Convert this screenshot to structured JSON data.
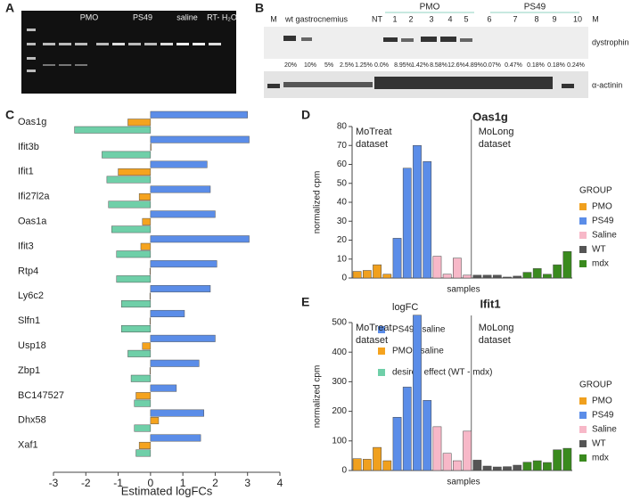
{
  "gel_a": {
    "panel": "A",
    "lanes": [
      "PMO",
      "PS49",
      "saline",
      "RT- H₂O"
    ]
  },
  "blot_b": {
    "panel": "B",
    "lanes": [
      "M",
      "wt gastrocnemius",
      "NT",
      "1",
      "2",
      "3",
      "4",
      "5",
      "6",
      "7",
      "8",
      "9",
      "10",
      "M"
    ],
    "groups": [
      "PMO",
      "PS49"
    ],
    "percentages": [
      "20%",
      "10%",
      "5%",
      "2.5%",
      "1.25%",
      "0.0%",
      "8.95%",
      "1.42%",
      "8.58%",
      "12.6%",
      "4.89%",
      "0.07%",
      "0.47%",
      "0.18%",
      "0.18%",
      "0.24%"
    ],
    "bands": [
      "dystrophin",
      "α-actinin"
    ]
  },
  "chart_data": [
    {
      "type": "hbar",
      "panel": "C",
      "xlabel": "Estimated logFCs",
      "categories": [
        "Oas1g",
        "Ifit3b",
        "Ifit1",
        "Ifi27l2a",
        "Oas1a",
        "Ifit3",
        "Rtp4",
        "Ly6c2",
        "Slfn1",
        "Usp18",
        "Zbp1",
        "BC147527",
        "Dhx58",
        "Xaf1"
      ],
      "series": [
        {
          "name": "PS49 - saline",
          "color": "#5b8de8",
          "values": [
            3.0,
            3.05,
            1.75,
            1.85,
            2.0,
            3.05,
            2.05,
            1.85,
            1.05,
            2.0,
            1.5,
            0.8,
            1.65,
            1.55
          ]
        },
        {
          "name": "PMO - saline",
          "color": "#f5a31e",
          "values": [
            -0.7,
            0.02,
            -1.0,
            -0.35,
            -0.25,
            -0.3,
            -0.02,
            -0.02,
            -0.02,
            -0.25,
            -0.02,
            -0.45,
            0.25,
            -0.35
          ]
        },
        {
          "name": "desired effect (WT - mdx)",
          "color": "#6fcfa8",
          "values": [
            -2.35,
            -1.5,
            -1.35,
            -1.3,
            -1.2,
            -1.05,
            -1.05,
            -0.9,
            -0.9,
            -0.7,
            -0.6,
            -0.5,
            -0.5,
            -0.45
          ]
        }
      ],
      "xlim": [
        -3,
        4
      ],
      "xticks": [
        -3,
        -2,
        -1,
        0,
        1,
        2,
        3,
        4
      ],
      "legend_title": "logFC"
    },
    {
      "type": "bar",
      "panel": "D",
      "title": "Oas1g",
      "xlabel": "samples",
      "ylabel": "normalized cpm",
      "categories": [
        null,
        null,
        null,
        null,
        null,
        null,
        null,
        null,
        null,
        null,
        null,
        null,
        null,
        null,
        null,
        null,
        null,
        null,
        null,
        null,
        null,
        null
      ],
      "series": [
        {
          "name": "PMO",
          "color": "#f0a01e",
          "values": [
            3.5,
            4,
            7,
            2,
            null,
            null,
            null,
            null,
            null,
            null,
            null,
            null,
            null,
            null,
            null,
            null,
            null,
            null,
            null,
            null,
            null,
            null
          ]
        },
        {
          "name": "PS49",
          "color": "#5b8de8",
          "values": [
            null,
            null,
            null,
            null,
            21,
            58,
            70,
            61.5,
            null,
            null,
            null,
            null,
            null,
            null,
            null,
            null,
            null,
            null,
            null,
            null,
            null,
            null
          ]
        },
        {
          "name": "Saline",
          "color": "#f7b8c8",
          "values": [
            null,
            null,
            null,
            null,
            null,
            null,
            null,
            null,
            11.5,
            2,
            10.5,
            1.5,
            null,
            null,
            null,
            null,
            null,
            null,
            null,
            null,
            null,
            null
          ]
        },
        {
          "name": "WT",
          "color": "#555555",
          "values": [
            null,
            null,
            null,
            null,
            null,
            null,
            null,
            null,
            null,
            null,
            null,
            null,
            1.5,
            1.5,
            1.5,
            0.5,
            1,
            null,
            null,
            null,
            null,
            null
          ]
        },
        {
          "name": "mdx",
          "color": "#3a8a1e",
          "values": [
            null,
            null,
            null,
            null,
            null,
            null,
            null,
            null,
            null,
            null,
            null,
            null,
            null,
            null,
            null,
            null,
            null,
            3,
            5,
            2,
            7,
            14
          ]
        }
      ],
      "ylim": [
        0,
        80
      ],
      "yticks": [
        0,
        10,
        20,
        30,
        40,
        50,
        60,
        70,
        80
      ],
      "annotations": [
        [
          "MoTreat",
          "dataset"
        ],
        [
          "MoLong",
          "dataset"
        ]
      ],
      "legend_title": "GROUP"
    },
    {
      "type": "bar",
      "panel": "E",
      "title": "Ifit1",
      "xlabel": "samples",
      "ylabel": "normalized cpm",
      "categories": [
        null,
        null,
        null,
        null,
        null,
        null,
        null,
        null,
        null,
        null,
        null,
        null,
        null,
        null,
        null,
        null,
        null,
        null,
        null,
        null,
        null,
        null
      ],
      "series": [
        {
          "name": "PMO",
          "color": "#f0a01e",
          "values": [
            40,
            38,
            78,
            33,
            null,
            null,
            null,
            null,
            null,
            null,
            null,
            null,
            null,
            null,
            null,
            null,
            null,
            null,
            null,
            null,
            null,
            null
          ]
        },
        {
          "name": "PS49",
          "color": "#5b8de8",
          "values": [
            null,
            null,
            null,
            null,
            180,
            282,
            525,
            237,
            null,
            null,
            null,
            null,
            null,
            null,
            null,
            null,
            null,
            null,
            null,
            null,
            null,
            null
          ]
        },
        {
          "name": "Saline",
          "color": "#f7b8c8",
          "values": [
            null,
            null,
            null,
            null,
            null,
            null,
            null,
            null,
            148,
            58,
            33,
            133,
            null,
            null,
            null,
            null,
            null,
            null,
            null,
            null,
            null,
            null
          ]
        },
        {
          "name": "WT",
          "color": "#555555",
          "values": [
            null,
            null,
            null,
            null,
            null,
            null,
            null,
            null,
            null,
            null,
            null,
            null,
            35,
            15,
            12,
            13,
            18,
            null,
            null,
            null,
            null,
            null
          ]
        },
        {
          "name": "mdx",
          "color": "#3a8a1e",
          "values": [
            null,
            null,
            null,
            null,
            null,
            null,
            null,
            null,
            null,
            null,
            null,
            null,
            null,
            null,
            null,
            null,
            null,
            28,
            33,
            27,
            70,
            75
          ]
        }
      ],
      "ylim": [
        0,
        500
      ],
      "yticks": [
        0,
        100,
        200,
        300,
        400,
        500
      ],
      "annotations": [
        [
          "MoTreat",
          "dataset"
        ],
        [
          "MoLong",
          "dataset"
        ]
      ],
      "legend_title": "GROUP"
    }
  ]
}
